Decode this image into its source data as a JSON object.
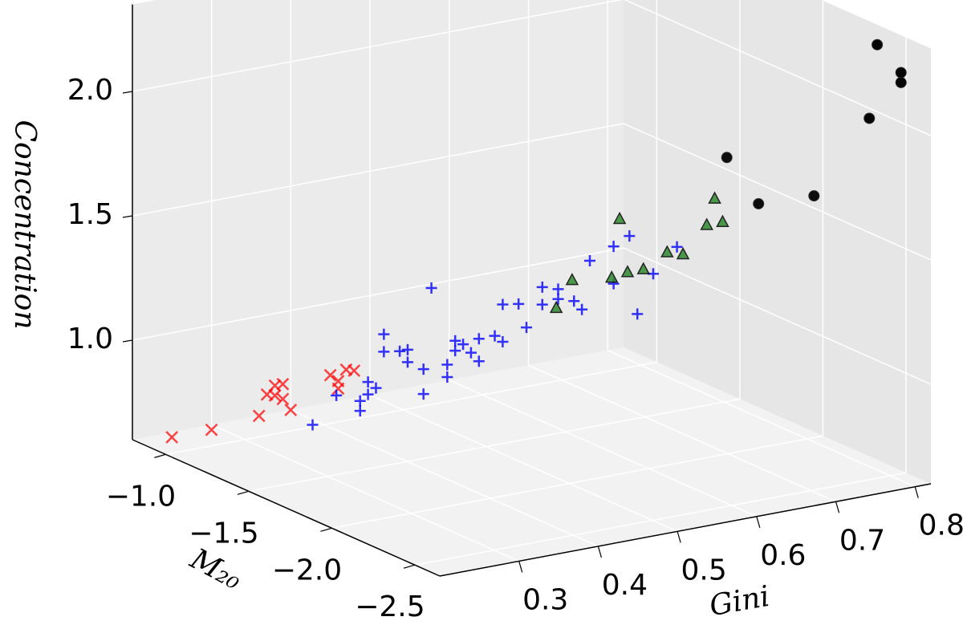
{
  "chart_data": {
    "type": "scatter3d",
    "x_label": "Gini",
    "y_label": "M₂₀",
    "z_label": "Concentration",
    "xlim": [
      0.2,
      0.82
    ],
    "ylim": [
      -2.65,
      -0.8
    ],
    "zlim": [
      0.6,
      2.35
    ],
    "xticks": [
      0.3,
      0.4,
      0.5,
      0.6,
      0.7,
      0.8
    ],
    "yticks": [
      {
        "value": -1,
        "label": "−1.0"
      },
      {
        "value": -1.5,
        "label": "−1.5"
      },
      {
        "value": -2,
        "label": "−2.0"
      },
      {
        "value": -2.5,
        "label": "−2.5"
      }
    ],
    "zticks": [
      {
        "value": 1,
        "label": "1.0"
      },
      1.5,
      {
        "value": 2,
        "label": "2.0"
      }
    ],
    "grid": true,
    "series": [
      {
        "color": "#ff0000",
        "marker": "x",
        "x": [
          0.21,
          0.26,
          0.32,
          0.33,
          0.34,
          0.35,
          0.35,
          0.36,
          0.41,
          0.42,
          0.43,
          0.44,
          0.42,
          0.34
        ],
        "y": [
          -0.99,
          -0.99,
          -0.99,
          -0.99,
          -0.99,
          -0.99,
          -0.99,
          -0.99,
          -0.99,
          -0.99,
          -0.99,
          -0.99,
          -0.99,
          -0.99
        ],
        "z": [
          0.66,
          0.66,
          0.68,
          0.76,
          0.79,
          0.79,
          0.73,
          0.68,
          0.79,
          0.76,
          0.8,
          0.79,
          0.73,
          0.75
        ]
      },
      {
        "color": "#0000ff",
        "marker": "+",
        "x": [
          0.31,
          0.37,
          0.37,
          0.34,
          0.38,
          0.39,
          0.38,
          0.4,
          0.4,
          0.42,
          0.43,
          0.43,
          0.45,
          0.45,
          0.46,
          0.48,
          0.48,
          0.49,
          0.49,
          0.5,
          0.52,
          0.51,
          0.52,
          0.54,
          0.55,
          0.55,
          0.57,
          0.58,
          0.6,
          0.6,
          0.62,
          0.62,
          0.64,
          0.65,
          0.66,
          0.69,
          0.71,
          0.69,
          0.72,
          0.74,
          0.77
        ],
        "y": [
          -1.36,
          -1.36,
          -1.36,
          -1.36,
          -1.36,
          -1.36,
          -1.36,
          -1.36,
          -1.36,
          -1.36,
          -1.36,
          -1.36,
          -1.36,
          -1.36,
          -1.36,
          -1.36,
          -1.36,
          -1.36,
          -1.36,
          -1.36,
          -1.36,
          -1.36,
          -1.36,
          -1.36,
          -1.36,
          -1.36,
          -1.36,
          -1.36,
          -1.36,
          -1.36,
          -1.36,
          -1.36,
          -1.36,
          -1.36,
          -1.36,
          -1.36,
          -1.36,
          -1.36,
          -1.36,
          -1.36,
          -1.36
        ],
        "z": [
          0.76,
          0.78,
          0.82,
          0.86,
          0.84,
          0.86,
          0.89,
          1.07,
          1.0,
          0.99,
          0.99,
          0.94,
          0.9,
          0.8,
          1.22,
          0.9,
          0.85,
          0.99,
          0.95,
          0.97,
          0.98,
          0.93,
          0.89,
          0.98,
          0.95,
          1.1,
          1.09,
          0.99,
          1.14,
          1.07,
          1.12,
          1.08,
          1.06,
          1.02,
          1.21,
          1.25,
          1.28,
          1.1,
          0.96,
          1.11,
          1.2
        ]
      },
      {
        "color": "#2e8b2e",
        "marker": "^",
        "x": [
          0.62,
          0.56,
          0.54,
          0.61,
          0.63,
          0.65,
          0.68,
          0.7,
          0.74,
          0.73,
          0.75
        ],
        "y": [
          -1.73,
          -1.73,
          -1.73,
          -1.73,
          -1.73,
          -1.73,
          -1.73,
          -1.73,
          -1.73,
          -1.73,
          -1.73
        ],
        "z": [
          1.51,
          1.3,
          1.2,
          1.28,
          1.29,
          1.29,
          1.34,
          1.32,
          1.52,
          1.42,
          1.42
        ]
      },
      {
        "color": "#000000",
        "marker": "o",
        "x": [
          0.79,
          0.82,
          0.82,
          0.78,
          0.64,
          0.68,
          0.75
        ],
        "y": [
          -2.47,
          -2.47,
          -2.47,
          -2.47,
          -2.28,
          -2.28,
          -2.28
        ],
        "z": [
          2.33,
          2.2,
          2.16,
          2.04,
          1.91,
          1.7,
          1.69
        ]
      }
    ]
  }
}
